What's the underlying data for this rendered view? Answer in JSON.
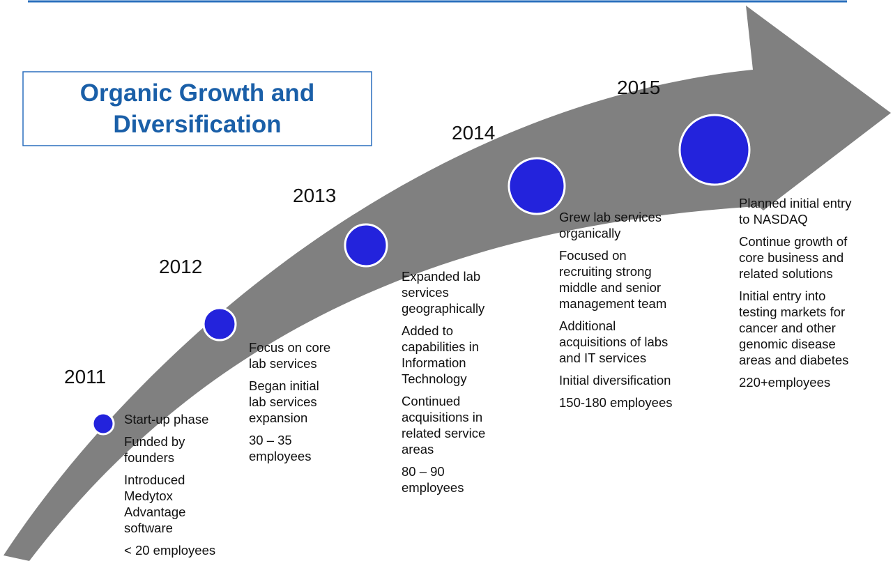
{
  "title_lines": [
    "Organic Growth and",
    "Diversification"
  ],
  "milestones": [
    {
      "year": "2011",
      "items": [
        [
          "Start-up phase"
        ],
        [
          "Funded by",
          "founders"
        ],
        [
          "Introduced",
          "Medytox",
          "Advantage",
          "software"
        ],
        [
          "< 20 employees"
        ]
      ]
    },
    {
      "year": "2012",
      "items": [
        [
          "Focus on core",
          "lab services"
        ],
        [
          "Began initial",
          "lab services",
          "expansion"
        ],
        [
          "30 – 35",
          "employees"
        ]
      ]
    },
    {
      "year": "2013",
      "items": [
        [
          "Expanded lab",
          "services",
          "geographically"
        ],
        [
          "Added to",
          "capabilities in",
          "Information",
          "Technology"
        ],
        [
          "Continued",
          "acquisitions in",
          "related service",
          "areas"
        ],
        [
          "80 – 90",
          "employees"
        ]
      ]
    },
    {
      "year": "2014",
      "items": [
        [
          "Grew lab services",
          "organically"
        ],
        [
          "Focused on",
          "recruiting strong",
          "middle  and senior",
          "management team"
        ],
        [
          "Additional",
          "acquisitions of labs",
          "and IT services"
        ],
        [
          "Initial diversification"
        ],
        [
          "150-180 employees"
        ]
      ]
    },
    {
      "year": "2015",
      "items": [
        [
          "Planned initial entry",
          "to NASDAQ"
        ],
        [
          "Continue growth of",
          "core business and",
          "related solutions"
        ],
        [
          "Initial entry into",
          "testing markets for",
          "cancer and other",
          "genomic disease",
          "areas and diabetes"
        ],
        [
          "220+employees"
        ]
      ]
    }
  ]
}
